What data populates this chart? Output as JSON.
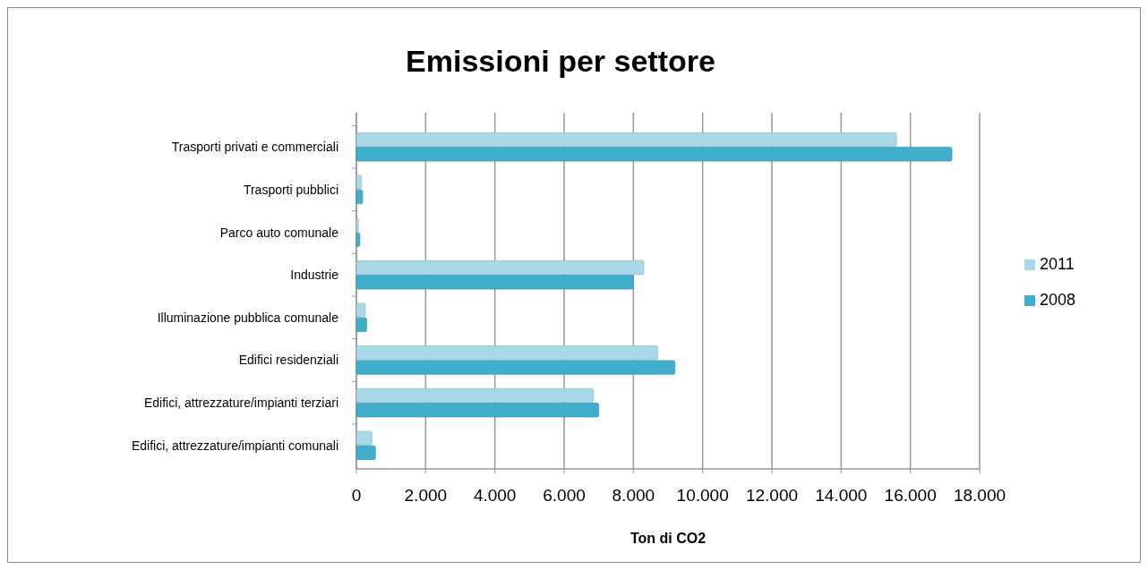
{
  "chart_data": {
    "type": "bar",
    "orientation": "horizontal",
    "title": "Emissioni per settore",
    "xlabel": "Ton di CO2",
    "categories": [
      "Trasporti privati e commerciali",
      "Trasporti pubblici",
      "Parco auto comunale",
      "Industrie ",
      "Illuminazione pubblica comunale",
      "Edifici residenziali",
      "Edifici, attrezzature/impianti terziari ",
      "Edifici, attrezzature/impianti comunali"
    ],
    "series": [
      {
        "name": "2011",
        "color": "#a9d9e8",
        "values": [
          15600,
          150,
          60,
          8300,
          260,
          8700,
          6850,
          450
        ]
      },
      {
        "name": "2008",
        "color": "#3fafcc",
        "values": [
          17200,
          180,
          100,
          8000,
          300,
          9200,
          7000,
          550
        ]
      }
    ],
    "xlim": [
      0,
      18000
    ],
    "xticks": [
      0,
      {
        "value": 2000,
        "label": "2.000"
      },
      {
        "value": 4000,
        "label": "4.000"
      },
      {
        "value": 6000,
        "label": "6.000"
      },
      {
        "value": 8000,
        "label": "8.000"
      },
      {
        "value": 10000,
        "label": "10.000"
      },
      {
        "value": 12000,
        "label": "12.000"
      },
      {
        "value": 14000,
        "label": "14.000"
      },
      {
        "value": 16000,
        "label": "16.000"
      },
      {
        "value": 18000,
        "label": "18.000"
      }
    ],
    "grid": "x",
    "legend": "right"
  }
}
